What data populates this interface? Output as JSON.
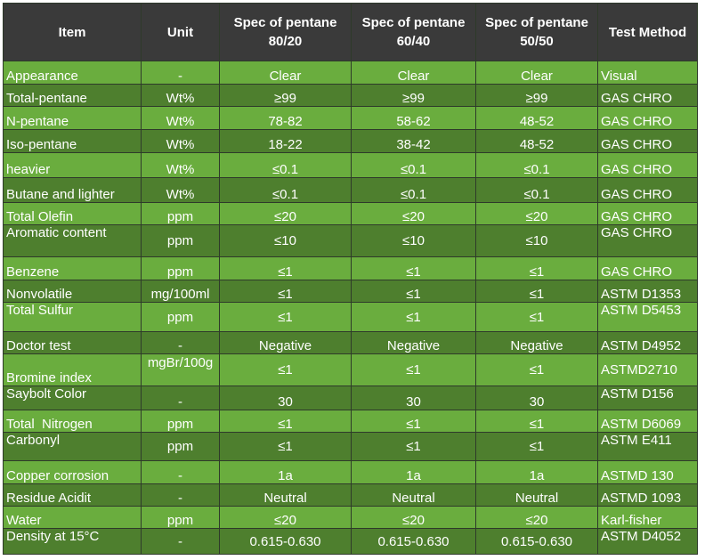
{
  "headers": [
    "Item",
    "Unit",
    "Spec of pentane 80/20",
    "Spec of pentane 60/40",
    "Spec of pentane 50/50",
    "Test Method"
  ],
  "rows": [
    {
      "item": "Appearance",
      "unit": "-",
      "s1": "Clear",
      "s2": "Clear",
      "s3": "Clear",
      "method": "Visual"
    },
    {
      "item": "Total-pentane",
      "unit": "Wt%",
      "s1": "≥99",
      "s2": "≥99",
      "s3": "≥99",
      "method": "GAS CHRO"
    },
    {
      "item": "N-pentane",
      "unit": "Wt%",
      "s1": "78-82",
      "s2": "58-62",
      "s3": "48-52",
      "method": "GAS CHRO"
    },
    {
      "item": "Iso-pentane",
      "unit": "Wt%",
      "s1": "18-22",
      "s2": "38-42",
      "s3": "48-52",
      "method": "GAS CHRO"
    },
    {
      "item": "heavier",
      "unit": "Wt%",
      "s1": "≤0.1",
      "s2": "≤0.1",
      "s3": "≤0.1",
      "method": "GAS CHRO"
    },
    {
      "item": "Butane and lighter",
      "unit": "Wt%",
      "s1": "≤0.1",
      "s2": "≤0.1",
      "s3": "≤0.1",
      "method": "GAS CHRO"
    },
    {
      "item": "Total Olefin",
      "unit": "ppm",
      "s1": "≤20",
      "s2": "≤20",
      "s3": "≤20",
      "method": "GAS CHRO"
    },
    {
      "item": "Aromatic content",
      "unit": "ppm",
      "s1": "≤10",
      "s2": "≤10",
      "s3": "≤10",
      "method": "GAS CHRO"
    },
    {
      "item": "Benzene",
      "unit": "ppm",
      "s1": "≤1",
      "s2": "≤1",
      "s3": "≤1",
      "method": "GAS CHRO"
    },
    {
      "item": "Nonvolatile",
      "unit": "mg/100ml",
      "s1": "≤1",
      "s2": "≤1",
      "s3": "≤1",
      "method": "ASTM D1353"
    },
    {
      "item": "Total Sulfur",
      "unit": "ppm",
      "s1": "≤1",
      "s2": "≤1",
      "s3": "≤1",
      "method": "ASTM D5453"
    },
    {
      "item": "Doctor test",
      "unit": "-",
      "s1": "Negative",
      "s2": "Negative",
      "s3": "Negative",
      "method": "ASTM D4952"
    },
    {
      "item": "Bromine index",
      "unit": "mgBr/100g",
      "s1": "≤1",
      "s2": "≤1",
      "s3": "≤1",
      "method": "ASTMD2710"
    },
    {
      "item": "Saybolt Color",
      "unit": "-",
      "s1": "30",
      "s2": "30",
      "s3": "30",
      "method": "ASTM D156"
    },
    {
      "item": "Total  Nitrogen",
      "unit": "ppm",
      "s1": "≤1",
      "s2": "≤1",
      "s3": "≤1",
      "method": "ASTM D6069"
    },
    {
      "item": "Carbonyl",
      "unit": "ppm",
      "s1": "≤1",
      "s2": "≤1",
      "s3": "≤1",
      "method": "ASTM E411"
    },
    {
      "item": "Copper corrosion",
      "unit": "-",
      "s1": "1a",
      "s2": "1a",
      "s3": "1a",
      "method": "ASTMD 130"
    },
    {
      "item": "Residue Acidit",
      "unit": "-",
      "s1": "Neutral",
      "s2": "Neutral",
      "s3": "Neutral",
      "method": "ASTMD 1093"
    },
    {
      "item": "Water",
      "unit": "ppm",
      "s1": "≤20",
      "s2": "≤20",
      "s3": "≤20",
      "method": "Karl-fisher"
    },
    {
      "item": "Density at 15°C",
      "unit": "-",
      "s1": "0.615-0.630",
      "s2": "0.615-0.630",
      "s3": "0.615-0.630",
      "method": "ASTM D4052"
    }
  ],
  "colors": {
    "header_bg": "#3a3a3a",
    "row_dark": "#4e7f2e",
    "row_light": "#6aad3e",
    "text": "#ffffff"
  }
}
